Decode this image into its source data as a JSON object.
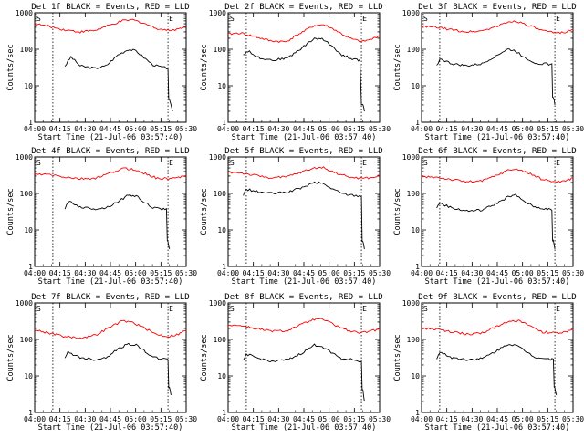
{
  "chart_data": [
    {
      "type": "line",
      "title": "Det 1f BLACK = Events, RED = LLD",
      "xlabel": "Start Time (21-Jul-06 03:57:40)",
      "ylabel": "Counts/sec",
      "y_scale": "log",
      "ylim": [
        1,
        1000
      ],
      "x_tick_labels": [
        "04:00",
        "04:15",
        "04:30",
        "04:45",
        "05:00",
        "05:15",
        "05:30"
      ],
      "y_tick_labels": [
        "1",
        "10",
        "100",
        "1000"
      ],
      "markers": [
        "S",
        "E"
      ],
      "series": [
        {
          "color": "#000000",
          "x": [
            0.2,
            0.24,
            0.3,
            0.4,
            0.47,
            0.55,
            0.62,
            0.67,
            0.72,
            0.78,
            0.83,
            0.88,
            0.89,
            0.91
          ],
          "y": [
            35,
            62,
            35,
            30,
            35,
            70,
            100,
            90,
            60,
            38,
            33,
            30,
            4,
            2
          ]
        },
        {
          "color": "#ff0000",
          "x": [
            0,
            0.1,
            0.2,
            0.3,
            0.4,
            0.5,
            0.58,
            0.65,
            0.72,
            0.8,
            0.88,
            0.95,
            1.0
          ],
          "y": [
            500,
            420,
            340,
            300,
            330,
            460,
            600,
            640,
            520,
            380,
            330,
            360,
            440
          ]
        }
      ]
    },
    {
      "type": "line",
      "title": "Det 2f BLACK = Events, RED = LLD",
      "xlabel": "Start Time (21-Jul-06 03:57:40)",
      "ylabel": "Counts/sec",
      "y_scale": "log",
      "ylim": [
        1,
        1000
      ],
      "x_tick_labels": [
        "04:00",
        "04:15",
        "04:30",
        "04:45",
        "05:00",
        "05:15",
        "05:30"
      ],
      "y_tick_labels": [
        "1",
        "10",
        "100",
        "1000"
      ],
      "markers": [
        "S",
        "E"
      ],
      "series": [
        {
          "color": "#000000",
          "x": [
            0.1,
            0.13,
            0.2,
            0.3,
            0.4,
            0.5,
            0.57,
            0.62,
            0.68,
            0.75,
            0.82,
            0.87,
            0.89,
            0.9
          ],
          "y": [
            70,
            90,
            60,
            50,
            60,
            120,
            200,
            190,
            130,
            70,
            55,
            50,
            3,
            2
          ]
        },
        {
          "color": "#ff0000",
          "x": [
            0,
            0.08,
            0.18,
            0.28,
            0.38,
            0.48,
            0.57,
            0.63,
            0.7,
            0.8,
            0.88,
            0.95,
            1.0
          ],
          "y": [
            260,
            280,
            220,
            170,
            160,
            280,
            450,
            470,
            350,
            200,
            160,
            190,
            240
          ]
        }
      ]
    },
    {
      "type": "line",
      "title": "Det 3f BLACK = Events, RED = LLD",
      "xlabel": "Start Time (21-Jul-06 03:57:40)",
      "ylabel": "Counts/sec",
      "y_scale": "log",
      "ylim": [
        1,
        1000
      ],
      "x_tick_labels": [
        "04:00",
        "04:15",
        "04:30",
        "04:45",
        "05:00",
        "05:15",
        "05:30"
      ],
      "y_tick_labels": [
        "1",
        "10",
        "100",
        "1000"
      ],
      "markers": [
        "S",
        "E"
      ],
      "series": [
        {
          "color": "#000000",
          "x": [
            0.1,
            0.12,
            0.2,
            0.3,
            0.4,
            0.5,
            0.57,
            0.62,
            0.68,
            0.75,
            0.82,
            0.86,
            0.87,
            0.88
          ],
          "y": [
            35,
            55,
            40,
            35,
            40,
            70,
            100,
            90,
            60,
            42,
            40,
            38,
            5,
            3
          ]
        },
        {
          "color": "#ff0000",
          "x": [
            0,
            0.1,
            0.2,
            0.3,
            0.4,
            0.5,
            0.58,
            0.63,
            0.7,
            0.8,
            0.88,
            0.95,
            1.0
          ],
          "y": [
            420,
            400,
            340,
            300,
            320,
            430,
            570,
            590,
            460,
            320,
            280,
            300,
            360
          ]
        }
      ]
    },
    {
      "type": "line",
      "title": "Det 4f BLACK = Events, RED = LLD",
      "xlabel": "Start Time (21-Jul-06 03:57:40)",
      "ylabel": "Counts/sec",
      "y_scale": "log",
      "ylim": [
        1,
        1000
      ],
      "x_tick_labels": [
        "04:00",
        "04:15",
        "04:30",
        "04:45",
        "05:00",
        "05:15",
        "05:30"
      ],
      "y_tick_labels": [
        "1",
        "10",
        "100",
        "1000"
      ],
      "markers": [
        "S",
        "E"
      ],
      "series": [
        {
          "color": "#000000",
          "x": [
            0.2,
            0.23,
            0.3,
            0.4,
            0.47,
            0.55,
            0.62,
            0.67,
            0.72,
            0.78,
            0.83,
            0.87,
            0.88,
            0.89
          ],
          "y": [
            40,
            62,
            42,
            38,
            40,
            60,
            90,
            85,
            60,
            40,
            38,
            36,
            5,
            3
          ]
        },
        {
          "color": "#ff0000",
          "x": [
            0,
            0.1,
            0.2,
            0.3,
            0.4,
            0.5,
            0.58,
            0.64,
            0.72,
            0.8,
            0.88,
            0.95,
            1.0
          ],
          "y": [
            330,
            330,
            280,
            250,
            260,
            360,
            480,
            470,
            360,
            270,
            250,
            270,
            320
          ]
        }
      ]
    },
    {
      "type": "line",
      "title": "Det 5f BLACK = Events, RED = LLD",
      "xlabel": "Start Time (21-Jul-06 03:57:40)",
      "ylabel": "Counts/sec",
      "y_scale": "log",
      "ylim": [
        1,
        1000
      ],
      "x_tick_labels": [
        "04:00",
        "04:15",
        "04:30",
        "04:45",
        "05:00",
        "05:15",
        "05:30"
      ],
      "y_tick_labels": [
        "1",
        "10",
        "100",
        "1000"
      ],
      "markers": [
        "S",
        "E"
      ],
      "series": [
        {
          "color": "#000000",
          "x": [
            0.1,
            0.12,
            0.2,
            0.3,
            0.4,
            0.5,
            0.57,
            0.62,
            0.68,
            0.75,
            0.82,
            0.88,
            0.89,
            0.9
          ],
          "y": [
            90,
            130,
            110,
            100,
            110,
            150,
            200,
            190,
            140,
            100,
            90,
            85,
            5,
            3
          ]
        },
        {
          "color": "#ff0000",
          "x": [
            0,
            0.08,
            0.18,
            0.28,
            0.38,
            0.48,
            0.57,
            0.63,
            0.7,
            0.8,
            0.88,
            0.95,
            1.0
          ],
          "y": [
            380,
            370,
            310,
            270,
            280,
            380,
            500,
            510,
            380,
            280,
            260,
            270,
            310
          ]
        }
      ]
    },
    {
      "type": "line",
      "title": "Det 6f BLACK = Events, RED = LLD",
      "xlabel": "Start Time (21-Jul-06 03:57:40)",
      "ylabel": "Counts/sec",
      "y_scale": "log",
      "ylim": [
        1,
        1000
      ],
      "x_tick_labels": [
        "04:00",
        "04:15",
        "04:30",
        "04:45",
        "05:00",
        "05:15",
        "05:30"
      ],
      "y_tick_labels": [
        "1",
        "10",
        "100",
        "1000"
      ],
      "markers": [
        "S",
        "E"
      ],
      "series": [
        {
          "color": "#000000",
          "x": [
            0.1,
            0.12,
            0.2,
            0.3,
            0.4,
            0.5,
            0.57,
            0.62,
            0.68,
            0.75,
            0.82,
            0.86,
            0.87,
            0.88
          ],
          "y": [
            40,
            55,
            40,
            33,
            35,
            55,
            80,
            90,
            60,
            42,
            38,
            35,
            5,
            3
          ]
        },
        {
          "color": "#ff0000",
          "x": [
            0,
            0.1,
            0.2,
            0.3,
            0.4,
            0.5,
            0.58,
            0.64,
            0.72,
            0.8,
            0.88,
            0.95,
            1.0
          ],
          "y": [
            280,
            280,
            240,
            210,
            220,
            320,
            450,
            460,
            340,
            240,
            210,
            220,
            270
          ]
        }
      ]
    },
    {
      "type": "line",
      "title": "Det 7f BLACK = Events, RED = LLD",
      "xlabel": "Start Time (21-Jul-06 03:57:40)",
      "ylabel": "Counts/sec",
      "y_scale": "log",
      "ylim": [
        1,
        1000
      ],
      "x_tick_labels": [
        "04:00",
        "04:15",
        "04:30",
        "04:45",
        "05:00",
        "05:15",
        "05:30"
      ],
      "y_tick_labels": [
        "1",
        "10",
        "100",
        "1000"
      ],
      "markers": [
        "S",
        "E"
      ],
      "series": [
        {
          "color": "#000000",
          "x": [
            0.2,
            0.22,
            0.3,
            0.4,
            0.47,
            0.55,
            0.62,
            0.67,
            0.72,
            0.78,
            0.83,
            0.88,
            0.89,
            0.9
          ],
          "y": [
            30,
            45,
            32,
            28,
            32,
            55,
            75,
            70,
            50,
            33,
            30,
            28,
            5,
            3
          ]
        },
        {
          "color": "#ff0000",
          "x": [
            0,
            0.1,
            0.2,
            0.3,
            0.4,
            0.5,
            0.58,
            0.64,
            0.72,
            0.8,
            0.88,
            0.95,
            1.0
          ],
          "y": [
            180,
            150,
            120,
            110,
            130,
            220,
            320,
            300,
            210,
            140,
            120,
            140,
            180
          ]
        }
      ]
    },
    {
      "type": "line",
      "title": "Det 8f BLACK = Events, RED = LLD",
      "xlabel": "Start Time (21-Jul-06 03:57:40)",
      "ylabel": "Counts/sec",
      "y_scale": "log",
      "ylim": [
        1,
        1000
      ],
      "x_tick_labels": [
        "04:00",
        "04:15",
        "04:30",
        "04:45",
        "05:00",
        "05:15",
        "05:30"
      ],
      "y_tick_labels": [
        "1",
        "10",
        "100",
        "1000"
      ],
      "markers": [
        "S",
        "E"
      ],
      "series": [
        {
          "color": "#000000",
          "x": [
            0.1,
            0.12,
            0.2,
            0.3,
            0.4,
            0.5,
            0.57,
            0.62,
            0.68,
            0.75,
            0.82,
            0.88,
            0.89,
            0.9
          ],
          "y": [
            25,
            40,
            30,
            25,
            28,
            45,
            70,
            65,
            45,
            30,
            28,
            25,
            4,
            2
          ]
        },
        {
          "color": "#ff0000",
          "x": [
            0,
            0.08,
            0.18,
            0.28,
            0.38,
            0.48,
            0.57,
            0.63,
            0.7,
            0.8,
            0.88,
            0.95,
            1.0
          ],
          "y": [
            250,
            240,
            200,
            170,
            170,
            250,
            360,
            350,
            250,
            170,
            150,
            170,
            200
          ]
        }
      ]
    },
    {
      "type": "line",
      "title": "Det 9f BLACK = Events, RED = LLD",
      "xlabel": "Start Time (21-Jul-06 03:57:40)",
      "ylabel": "Counts/sec",
      "y_scale": "log",
      "ylim": [
        1,
        1000
      ],
      "x_tick_labels": [
        "04:00",
        "04:15",
        "04:30",
        "04:45",
        "05:00",
        "05:15",
        "05:30"
      ],
      "y_tick_labels": [
        "1",
        "10",
        "100",
        "1000"
      ],
      "markers": [
        "S",
        "E"
      ],
      "series": [
        {
          "color": "#000000",
          "x": [
            0.1,
            0.12,
            0.2,
            0.3,
            0.4,
            0.5,
            0.57,
            0.62,
            0.68,
            0.75,
            0.82,
            0.87,
            0.88,
            0.89
          ],
          "y": [
            30,
            45,
            32,
            28,
            30,
            50,
            75,
            70,
            50,
            33,
            30,
            28,
            5,
            3
          ]
        },
        {
          "color": "#ff0000",
          "x": [
            0,
            0.1,
            0.2,
            0.3,
            0.4,
            0.5,
            0.58,
            0.64,
            0.72,
            0.8,
            0.88,
            0.95,
            1.0
          ],
          "y": [
            200,
            190,
            160,
            140,
            150,
            230,
            330,
            320,
            230,
            160,
            150,
            160,
            200
          ]
        }
      ]
    }
  ]
}
